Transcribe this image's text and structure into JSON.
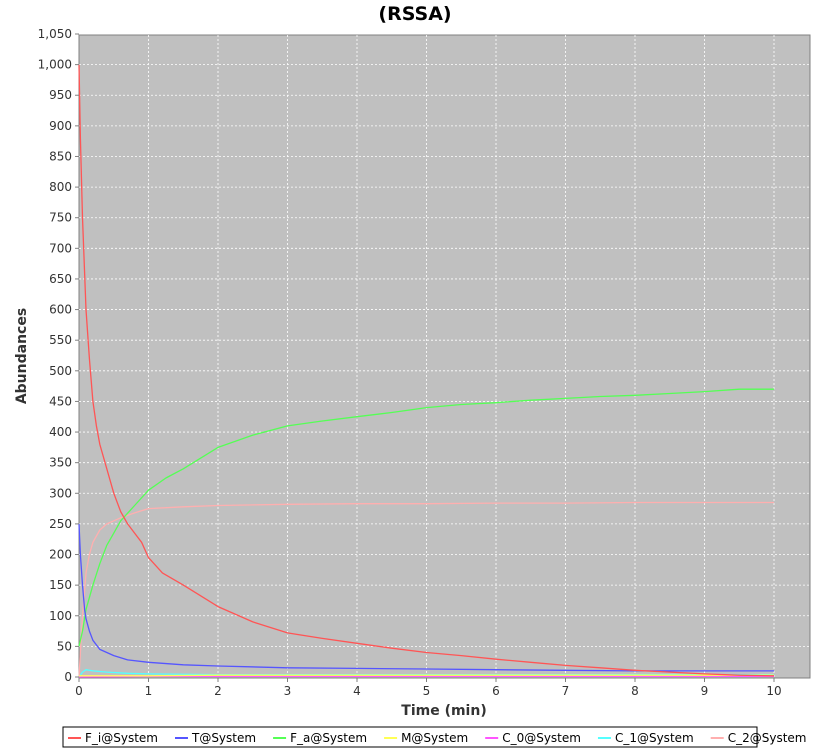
{
  "chart_data": {
    "type": "line",
    "title": "(RSSA)",
    "xlabel": "Time (min)",
    "ylabel": "Abundances",
    "xlim": [
      0,
      10
    ],
    "ylim": [
      0,
      1050
    ],
    "grid": true,
    "legend_placement": "bottom",
    "x_ticks": [
      "0",
      "1",
      "2",
      "3",
      "4",
      "5",
      "6",
      "7",
      "8",
      "9",
      "10"
    ],
    "y_ticks": [
      "0",
      "50",
      "100",
      "150",
      "200",
      "250",
      "300",
      "350",
      "400",
      "450",
      "500",
      "550",
      "600",
      "650",
      "700",
      "750",
      "800",
      "850",
      "900",
      "950",
      "1,000",
      "1,050"
    ],
    "plot_background": "#c0c0c0",
    "series": [
      {
        "name": "F_i@System",
        "color": "#ff5555",
        "x": [
          0,
          0.02,
          0.05,
          0.1,
          0.15,
          0.2,
          0.25,
          0.3,
          0.4,
          0.5,
          0.6,
          0.7,
          0.8,
          0.9,
          1.0,
          1.2,
          1.5,
          2.0,
          2.5,
          3.0,
          3.5,
          4.0,
          4.5,
          5.0,
          5.5,
          6.0,
          6.5,
          7.0,
          7.5,
          8.0,
          8.5,
          9.0,
          9.5,
          10.0
        ],
        "values": [
          1000,
          880,
          750,
          600,
          520,
          450,
          410,
          380,
          340,
          300,
          270,
          250,
          235,
          220,
          195,
          170,
          150,
          115,
          90,
          72,
          63,
          55,
          47,
          40,
          35,
          29,
          24,
          19,
          15,
          11,
          8,
          5,
          3,
          2
        ]
      },
      {
        "name": "T@System",
        "color": "#5555ff",
        "x": [
          0,
          0.02,
          0.05,
          0.08,
          0.1,
          0.15,
          0.2,
          0.3,
          0.5,
          0.7,
          1.0,
          1.5,
          2.0,
          3.0,
          4.0,
          5.0,
          6.0,
          7.0,
          8.0,
          9.0,
          10.0
        ],
        "values": [
          250,
          200,
          150,
          110,
          95,
          75,
          60,
          45,
          35,
          28,
          24,
          20,
          18,
          15,
          14,
          13,
          12,
          11,
          10,
          10,
          10
        ]
      },
      {
        "name": "F_a@System",
        "color": "#55ff55",
        "x": [
          0,
          0.05,
          0.1,
          0.2,
          0.3,
          0.4,
          0.5,
          0.6,
          0.8,
          1.0,
          1.25,
          1.5,
          2.0,
          2.5,
          3.0,
          3.5,
          4.0,
          4.5,
          5.0,
          5.5,
          6.0,
          6.5,
          7.0,
          7.5,
          8.0,
          8.5,
          9.0,
          9.5,
          10.0
        ],
        "values": [
          50,
          75,
          110,
          150,
          185,
          215,
          235,
          255,
          280,
          305,
          325,
          340,
          375,
          395,
          410,
          418,
          425,
          432,
          440,
          445,
          448,
          452,
          455,
          458,
          460,
          463,
          466,
          470,
          470
        ]
      },
      {
        "name": "M@System",
        "color": "#ffff55",
        "x": [
          0,
          1,
          2,
          3,
          4,
          5,
          6,
          7,
          8,
          9,
          10
        ],
        "values": [
          2,
          2,
          3,
          3,
          3,
          3,
          3,
          3,
          3,
          3,
          3
        ]
      },
      {
        "name": "C_0@System",
        "color": "#ff55ff",
        "x": [
          0,
          1,
          2,
          3,
          4,
          5,
          6,
          7,
          8,
          9,
          10
        ],
        "values": [
          0,
          1,
          1,
          1,
          1,
          1,
          1,
          1,
          1,
          1,
          1
        ]
      },
      {
        "name": "C_1@System",
        "color": "#55ffff",
        "x": [
          0,
          0.05,
          0.1,
          0.2,
          0.4,
          0.7,
          1.0,
          2.0,
          3.0,
          5.0,
          7.0,
          10.0
        ],
        "values": [
          0,
          8,
          12,
          10,
          8,
          6,
          5,
          4,
          4,
          4,
          4,
          4
        ]
      },
      {
        "name": "C_2@System",
        "color": "#ffafaf",
        "x": [
          0,
          0.05,
          0.1,
          0.15,
          0.2,
          0.3,
          0.4,
          0.5,
          0.6,
          0.8,
          1.0,
          1.5,
          2.0,
          3.0,
          4.0,
          5.0,
          6.0,
          7.0,
          8.0,
          9.0,
          10.0
        ],
        "values": [
          0,
          100,
          170,
          200,
          220,
          240,
          250,
          255,
          260,
          268,
          275,
          278,
          280,
          282,
          283,
          283,
          284,
          284,
          285,
          285,
          285
        ]
      }
    ]
  }
}
